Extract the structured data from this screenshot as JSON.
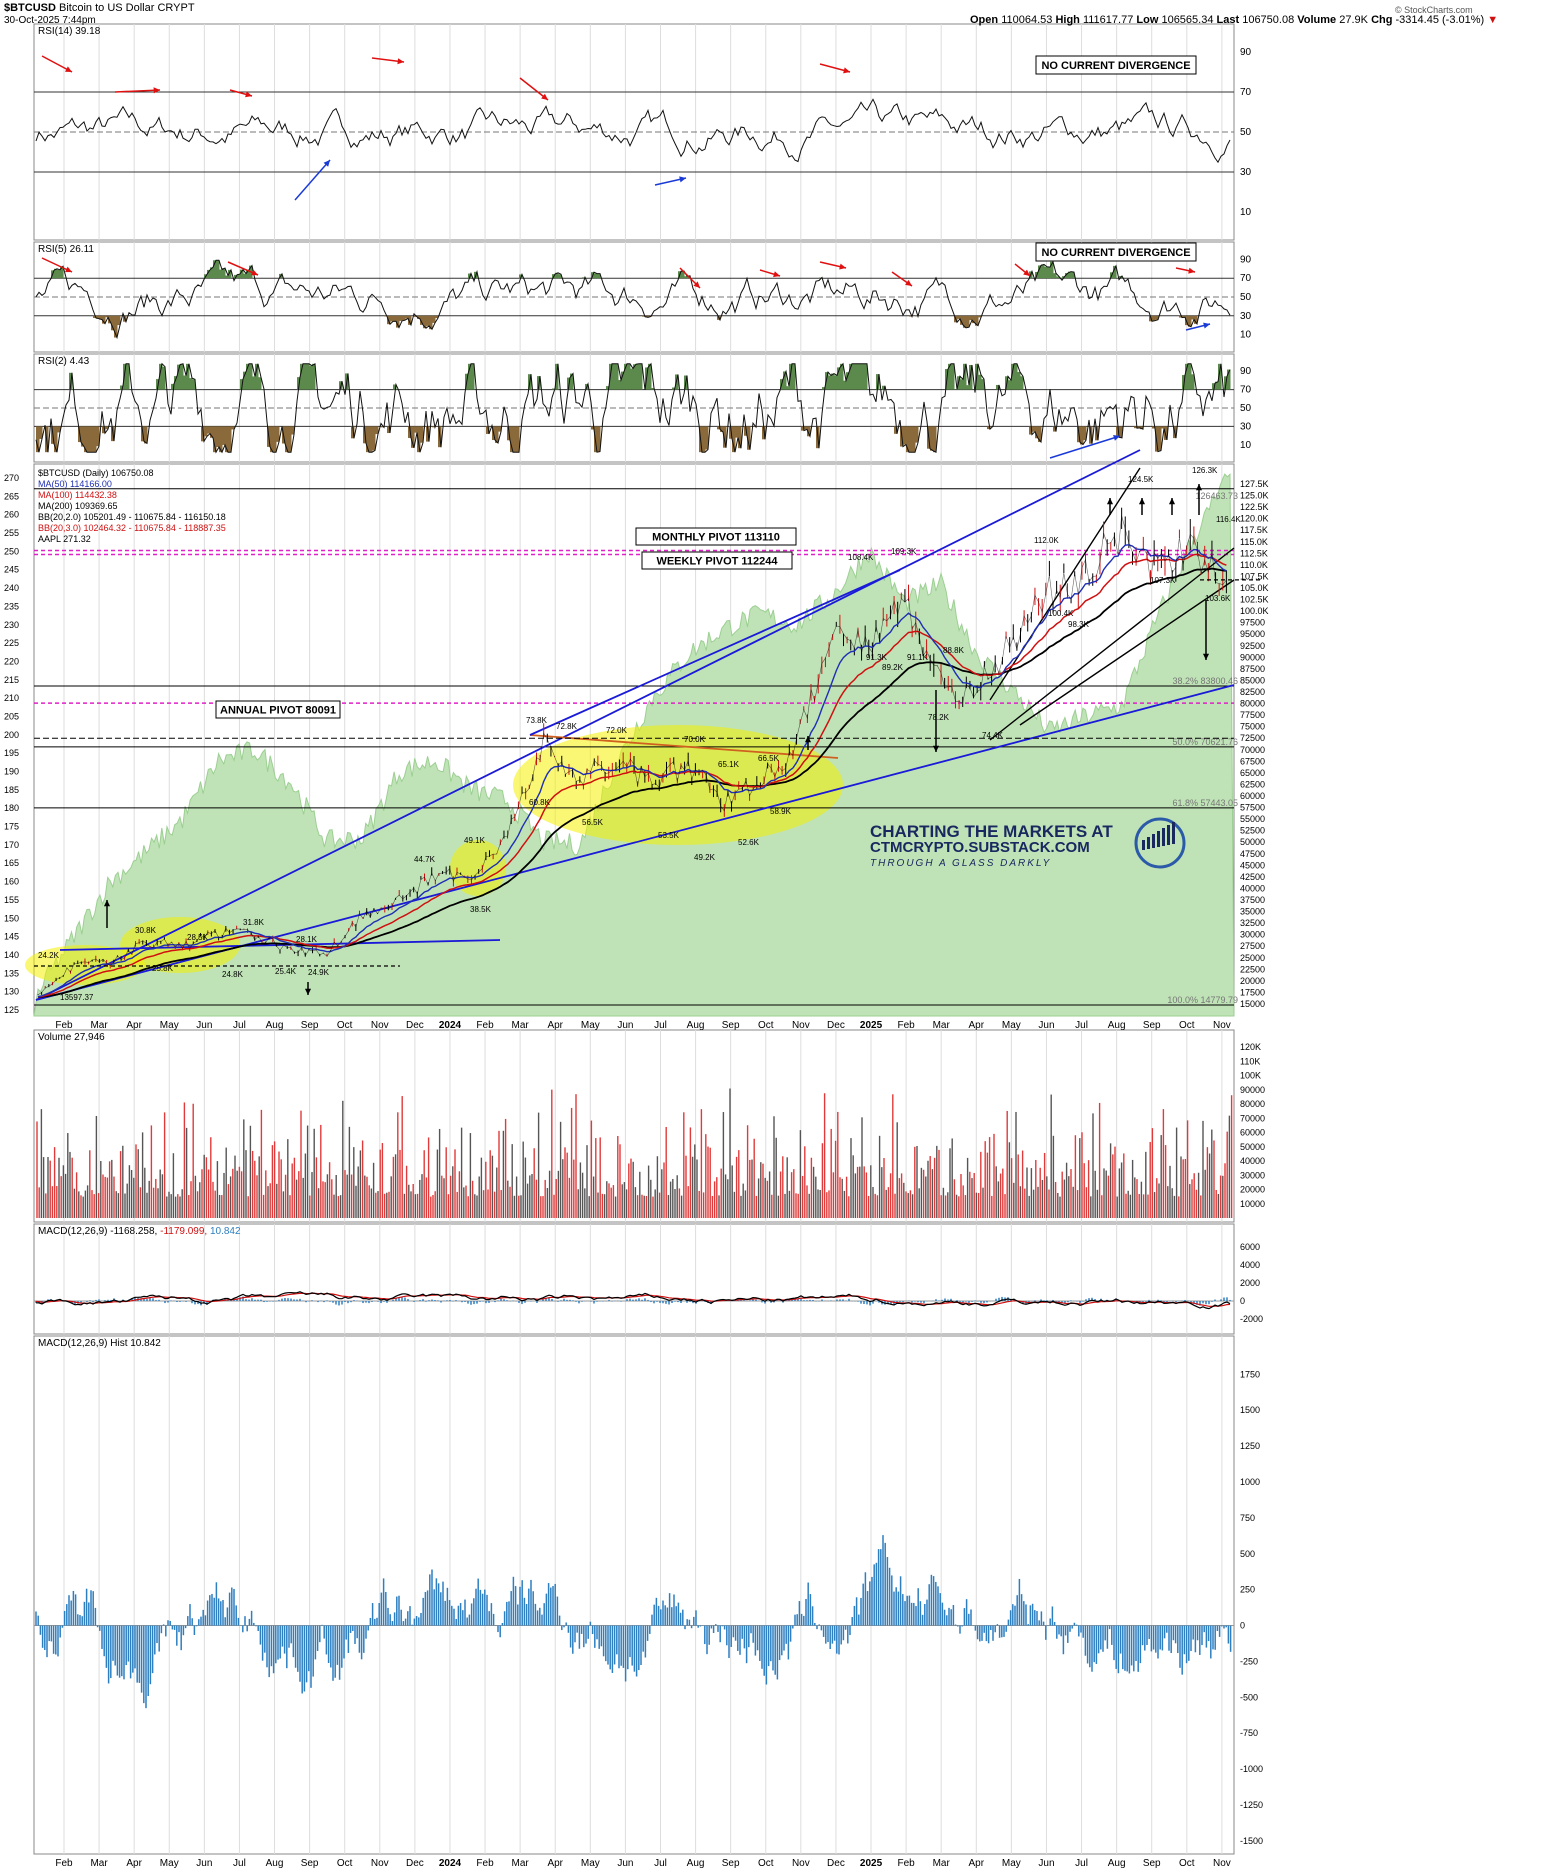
{
  "header": {
    "symbol": "$BTCUSD",
    "name": "Bitcoin to US Dollar",
    "exchange": "CRYPT",
    "date": "30-Oct-2025 7:44pm",
    "credit": "© StockCharts.com",
    "quote": {
      "open_label": "Open",
      "open": "110064.53",
      "high_label": "High",
      "high": "111617.77",
      "low_label": "Low",
      "low": "106565.34",
      "last_label": "Last",
      "last": "106750.08",
      "volume_label": "Volume",
      "volume": "27.9K",
      "chg_label": "Chg",
      "chg": "-3314.45 (-3.01%)"
    }
  },
  "colors": {
    "panel_border": "#888888",
    "grid": "#dddddd",
    "overbought_fill": "#5c8a4c",
    "oversold_fill": "#8a6a3a",
    "aapl_fill": "#bfe3b6",
    "aapl_line": "#9ccf92",
    "ma50": "#1f2fb5",
    "ma100": "#d01010",
    "ma200": "#000000",
    "pivot": "#e020c8",
    "trendline": "#1a1ad8",
    "highlight": "#f4f000",
    "macd_hist": "#2d7fc0",
    "vol_up": "#555555",
    "vol_down": "#e03a3a",
    "watermark": "#1a2860"
  },
  "x_axis": {
    "labels": [
      "Feb",
      "Mar",
      "Apr",
      "May",
      "Jun",
      "Jul",
      "Aug",
      "Sep",
      "Oct",
      "Nov",
      "Dec",
      "2024",
      "Feb",
      "Mar",
      "Apr",
      "May",
      "Jun",
      "Jul",
      "Aug",
      "Sep",
      "Oct",
      "Nov",
      "Dec",
      "2025",
      "Feb",
      "Mar",
      "Apr",
      "May",
      "Jun",
      "Jul",
      "Aug",
      "Sep",
      "Oct",
      "Nov"
    ],
    "bold": [
      "2024",
      "2025"
    ]
  },
  "panels": {
    "rsi14": {
      "label": "RSI(14) 39.18",
      "ticks": [
        "90",
        "70",
        "50",
        "30",
        "10"
      ],
      "annotation": "NO CURRENT DIVERGENCE"
    },
    "rsi5": {
      "label": "RSI(5) 26.11",
      "ticks": [
        "90",
        "70",
        "50",
        "30",
        "10"
      ],
      "annotation": "NO CURRENT DIVERGENCE"
    },
    "rsi2": {
      "label": "RSI(2) 4.43",
      "ticks": [
        "90",
        "70",
        "50",
        "30",
        "10"
      ]
    },
    "price": {
      "legend": [
        {
          "text": "$BTCUSD (Daily) 106750.08",
          "color": "#000000"
        },
        {
          "text": "MA(50) 114166.00",
          "color": "#1f2fb5"
        },
        {
          "text": "MA(100) 114432.38",
          "color": "#d01010"
        },
        {
          "text": "MA(200) 109369.65",
          "color": "#000000"
        },
        {
          "text": "BB(20,2.0) 105201.49 - 110675.84 - 116150.18",
          "color": "#000000"
        },
        {
          "text": "BB(20,3.0) 102464.32 - 110675.84 - 118887.35",
          "color": "#d01010"
        },
        {
          "text": "AAPL 271.32",
          "color": "#000000"
        }
      ],
      "left_ticks": [
        "270",
        "265",
        "260",
        "255",
        "250",
        "245",
        "240",
        "235",
        "230",
        "225",
        "220",
        "215",
        "210",
        "205",
        "200",
        "195",
        "190",
        "185",
        "180",
        "175",
        "170",
        "165",
        "160",
        "155",
        "150",
        "145",
        "140",
        "135",
        "130",
        "125"
      ],
      "right_ticks": [
        "127.5K",
        "125.0K",
        "122.5K",
        "120.0K",
        "117.5K",
        "115.0K",
        "112.5K",
        "110.0K",
        "107.5K",
        "105.0K",
        "102.5K",
        "100.0K",
        "97500",
        "95000",
        "92500",
        "90000",
        "87500",
        "85000",
        "82500",
        "80000",
        "77500",
        "75000",
        "72500",
        "70000",
        "67500",
        "65000",
        "62500",
        "60000",
        "57500",
        "55000",
        "52500",
        "50000",
        "47500",
        "45000",
        "42500",
        "40000",
        "37500",
        "35000",
        "32500",
        "30000",
        "27500",
        "25000",
        "22500",
        "20000",
        "17500",
        "15000"
      ],
      "fib_labels": [
        "38.2% 83800.46",
        "50.0% 70621.76",
        "61.8% 57443.05",
        "100.0% 14779.79"
      ],
      "fib_top_label": "126463.73",
      "pivots": {
        "monthly": "MONTHLY PIVOT 113110",
        "weekly": "WEEKLY PIVOT 112244",
        "annual": "ANNUAL PIVOT 80091"
      },
      "data_labels": [
        "13597.37",
        "24.2K",
        "30.8K",
        "28.5K",
        "25.8K",
        "24.8K",
        "31.8K",
        "28.1K",
        "25.4K",
        "24.9K",
        "44.7K",
        "49.1K",
        "38.5K",
        "73.8K",
        "72.8K",
        "72.0K",
        "70.0K",
        "65.1K",
        "66.5K",
        "60.8K",
        "56.5K",
        "53.5K",
        "49.2K",
        "52.6K",
        "58.9K",
        "108.4K",
        "109.3K",
        "91.3K",
        "89.2K",
        "91.1K",
        "88.8K",
        "78.2K",
        "74.4K",
        "112.0K",
        "100.4K",
        "98.3K",
        "124.5K",
        "107.3K",
        "126.3K",
        "116.4K",
        "103.6K"
      ],
      "watermark": {
        "line1": "CHARTING THE MARKETS AT",
        "line2": "CTMCRYPTO.SUBSTACK.COM",
        "line3": "THROUGH A GLASS DARKLY"
      }
    },
    "volume": {
      "label": "Volume 27,946",
      "ticks": [
        "120K",
        "110K",
        "100K",
        "90000",
        "80000",
        "70000",
        "60000",
        "50000",
        "40000",
        "30000",
        "20000",
        "10000"
      ]
    },
    "macd": {
      "label": "MACD(12,26,9)",
      "value1": "-1168.258",
      "value2": "-1179.099",
      "value3": "10.842",
      "ticks": [
        "6000",
        "4000",
        "2000",
        "0",
        "-2000"
      ]
    },
    "hist": {
      "label": "MACD(12,26,9) Hist 10.842",
      "ticks": [
        "1750",
        "1500",
        "1250",
        "1000",
        "750",
        "500",
        "250",
        "0",
        "-250",
        "-500",
        "-750",
        "-1000",
        "-1250",
        "-1500"
      ]
    }
  },
  "chart_data": {
    "type": "line",
    "title": "$BTCUSD Bitcoin to US Dollar (Daily)",
    "x": [
      "2023-01",
      "2023-02",
      "2023-03",
      "2023-04",
      "2023-05",
      "2023-06",
      "2023-07",
      "2023-08",
      "2023-09",
      "2023-10",
      "2023-11",
      "2023-12",
      "2024-01",
      "2024-02",
      "2024-03",
      "2024-04",
      "2024-05",
      "2024-06",
      "2024-07",
      "2024-08",
      "2024-09",
      "2024-10",
      "2024-11",
      "2024-12",
      "2025-01",
      "2025-02",
      "2025-03",
      "2025-04",
      "2025-05",
      "2025-06",
      "2025-07",
      "2025-08",
      "2025-09",
      "2025-10"
    ],
    "series": [
      {
        "name": "$BTCUSD",
        "values": [
          16500,
          23500,
          24000,
          28500,
          27500,
          30500,
          30000,
          26500,
          26000,
          34500,
          37500,
          42500,
          43000,
          51500,
          71000,
          63500,
          67500,
          62500,
          66500,
          59000,
          63500,
          70500,
          96500,
          93500,
          102000,
          84500,
          82500,
          94500,
          104500,
          107500,
          117500,
          108500,
          114000,
          106750
        ]
      },
      {
        "name": "AAPL",
        "values": [
          130,
          145,
          160,
          168,
          177,
          193,
          196,
          187,
          171,
          172,
          190,
          193,
          185,
          182,
          171,
          170,
          192,
          210,
          222,
          229,
          233,
          230,
          238,
          250,
          236,
          241,
          222,
          212,
          201,
          205,
          208,
          232,
          254,
          271
        ]
      }
    ],
    "ylim_price": [
      14779.79,
      127500
    ],
    "ylim_aapl": [
      125,
      270
    ],
    "pivots": {
      "monthly": 113110,
      "weekly": 112244,
      "annual": 80091
    },
    "fibonacci": {
      "0.382": 83800.46,
      "0.5": 70621.76,
      "0.618": 57443.05,
      "1.0": 14779.79,
      "top": 126463.73
    },
    "last_values": {
      "rsi14": 39.18,
      "rsi5": 26.11,
      "rsi2": 4.43,
      "volume": 27946,
      "macd": -1168.258,
      "macd_signal": -1179.099,
      "macd_hist": 10.842,
      "ma50": 114166.0,
      "ma100": 114432.38,
      "ma200": 109369.65
    },
    "grid": true
  }
}
